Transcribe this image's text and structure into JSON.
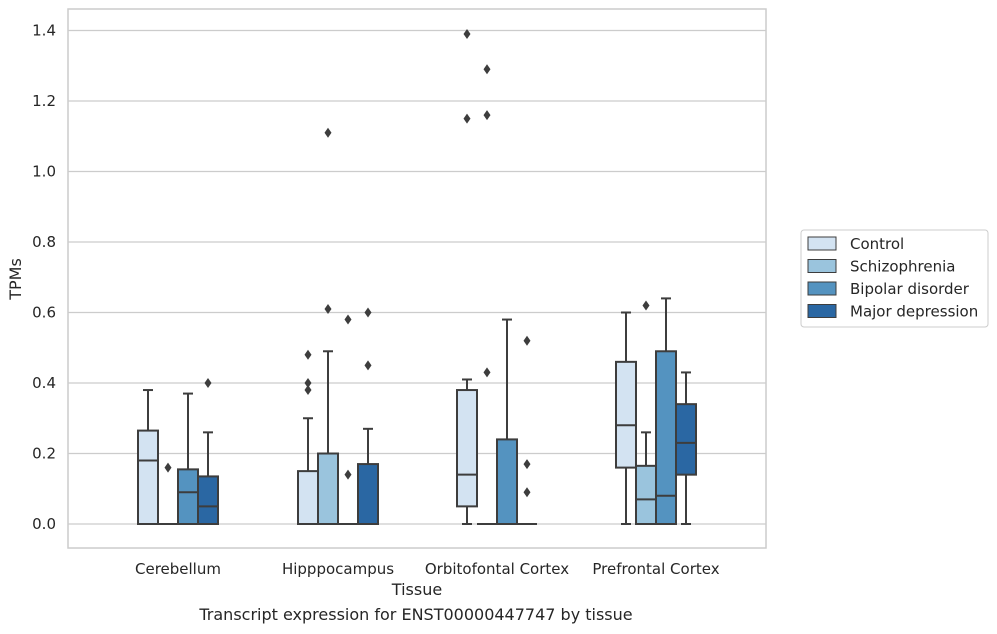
{
  "caption": "Transcript expression for ENST00000447747 by tissue",
  "chart_data": {
    "type": "box",
    "xlabel": "Tissue",
    "ylabel": "TPMs",
    "ylim": [
      -0.065,
      1.46
    ],
    "yticks": [
      0.0,
      0.2,
      0.4,
      0.6,
      0.8,
      1.0,
      1.2,
      1.4
    ],
    "ytick_labels": [
      "0.0",
      "0.2",
      "0.4",
      "0.6",
      "0.8",
      "1.0",
      "1.2",
      "1.4"
    ],
    "grid": "horizontal",
    "legend_position": "right",
    "categories": [
      "Cerebellum",
      "Hipppocampus",
      "Orbitofontal Cortex",
      "Prefrontal Cortex"
    ],
    "series": [
      {
        "name": "Control",
        "color": "#d3e3f2",
        "boxes": [
          {
            "q1": 0.0,
            "median": 0.18,
            "q3": 0.265,
            "whisker_low": 0.0,
            "whisker_high": 0.38,
            "outliers": []
          },
          {
            "q1": 0.0,
            "median": 0.0,
            "q3": 0.15,
            "whisker_low": 0.0,
            "whisker_high": 0.3,
            "outliers": [
              0.38,
              0.4,
              0.48
            ]
          },
          {
            "q1": 0.05,
            "median": 0.14,
            "q3": 0.38,
            "whisker_low": 0.0,
            "whisker_high": 0.41,
            "outliers": [
              1.15,
              1.39
            ]
          },
          {
            "q1": 0.16,
            "median": 0.28,
            "q3": 0.46,
            "whisker_low": 0.0,
            "whisker_high": 0.6,
            "outliers": []
          }
        ]
      },
      {
        "name": "Schizophrenia",
        "color": "#9ac4dd",
        "boxes": [
          {
            "q1": 0.0,
            "median": 0.0,
            "q3": 0.0,
            "whisker_low": 0.0,
            "whisker_high": 0.0,
            "outliers": [
              0.16
            ]
          },
          {
            "q1": 0.0,
            "median": 0.0,
            "q3": 0.2,
            "whisker_low": 0.0,
            "whisker_high": 0.49,
            "outliers": [
              0.61,
              1.11
            ]
          },
          {
            "q1": 0.0,
            "median": 0.0,
            "q3": 0.0,
            "whisker_low": 0.0,
            "whisker_high": 0.0,
            "outliers": [
              0.43,
              1.16,
              1.29
            ]
          },
          {
            "q1": 0.0,
            "median": 0.07,
            "q3": 0.165,
            "whisker_low": 0.0,
            "whisker_high": 0.26,
            "outliers": [
              0.62
            ]
          }
        ]
      },
      {
        "name": "Bipolar disorder",
        "color": "#5493c0",
        "boxes": [
          {
            "q1": 0.0,
            "median": 0.09,
            "q3": 0.155,
            "whisker_low": 0.0,
            "whisker_high": 0.37,
            "outliers": []
          },
          {
            "q1": 0.0,
            "median": 0.0,
            "q3": 0.0,
            "whisker_low": 0.0,
            "whisker_high": 0.0,
            "outliers": [
              0.14,
              0.58
            ]
          },
          {
            "q1": 0.0,
            "median": 0.0,
            "q3": 0.24,
            "whisker_low": 0.0,
            "whisker_high": 0.58,
            "outliers": []
          },
          {
            "q1": 0.0,
            "median": 0.08,
            "q3": 0.49,
            "whisker_low": 0.0,
            "whisker_high": 0.64,
            "outliers": []
          }
        ]
      },
      {
        "name": "Major depression",
        "color": "#2a67a3",
        "boxes": [
          {
            "q1": 0.0,
            "median": 0.05,
            "q3": 0.135,
            "whisker_low": 0.0,
            "whisker_high": 0.26,
            "outliers": [
              0.4
            ]
          },
          {
            "q1": 0.0,
            "median": 0.0,
            "q3": 0.17,
            "whisker_low": 0.0,
            "whisker_high": 0.27,
            "outliers": [
              0.45,
              0.6
            ]
          },
          {
            "q1": 0.0,
            "median": 0.0,
            "q3": 0.0,
            "whisker_low": 0.0,
            "whisker_high": 0.0,
            "outliers": [
              0.09,
              0.17,
              0.52
            ]
          },
          {
            "q1": 0.14,
            "median": 0.23,
            "q3": 0.34,
            "whisker_low": 0.0,
            "whisker_high": 0.43,
            "outliers": []
          }
        ]
      }
    ]
  }
}
